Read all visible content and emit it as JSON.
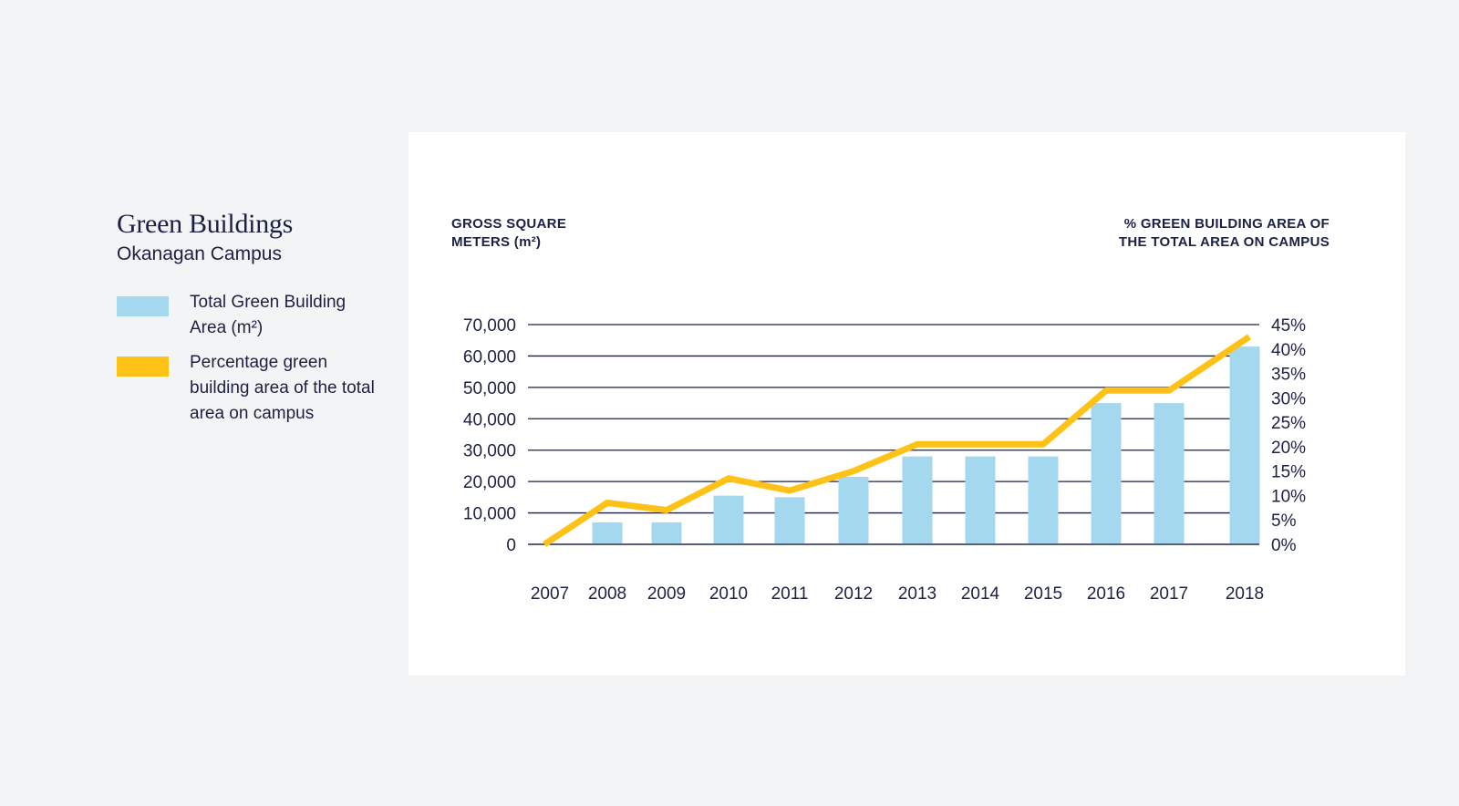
{
  "legend_panel": {
    "title": "Green Buildings",
    "subtitle": "Okanagan Campus",
    "items": [
      {
        "label": "Total Green Building Area (m²)",
        "color": "#a3d8ee",
        "icon": "bar-swatch"
      },
      {
        "label": "Percentage green building area of the total area on campus",
        "color": "#fec216",
        "icon": "line-swatch"
      }
    ]
  },
  "chart_data": {
    "type": "bar",
    "categories": [
      "2007",
      "2008",
      "2009",
      "2010",
      "2011",
      "2012",
      "2013",
      "2014",
      "2015",
      "2016",
      "2017",
      "2018"
    ],
    "series": [
      {
        "name": "Total Green Building Area (m²)",
        "type": "bar",
        "axis": "left",
        "color": "#a3d8ee",
        "values": [
          0,
          7000,
          7000,
          15500,
          15000,
          21500,
          28000,
          28000,
          28000,
          45000,
          45000,
          63000
        ]
      },
      {
        "name": "Percentage green building area of the total area on campus",
        "type": "line",
        "axis": "right",
        "color": "#fec216",
        "values": [
          0,
          8.5,
          7,
          13.5,
          11,
          15,
          20.5,
          20.5,
          20.5,
          31.5,
          31.5,
          42.5
        ]
      }
    ],
    "ylabel": "GROSS SQUARE\nMETERS (m²)",
    "ylabel_right": "% GREEN BUILDING AREA OF\nTHE TOTAL AREA ON CAMPUS",
    "ylim": [
      0,
      70000
    ],
    "ylim_right": [
      0,
      45
    ],
    "yticks": [
      "0",
      "10,000",
      "20,000",
      "30,000",
      "40,000",
      "50,000",
      "60,000",
      "70,000"
    ],
    "yticks_right": [
      "0%",
      "5%",
      "10%",
      "15%",
      "20%",
      "25%",
      "30%",
      "35%",
      "40%",
      "45%"
    ],
    "grid": true,
    "gridline_color": "#1d2045"
  }
}
